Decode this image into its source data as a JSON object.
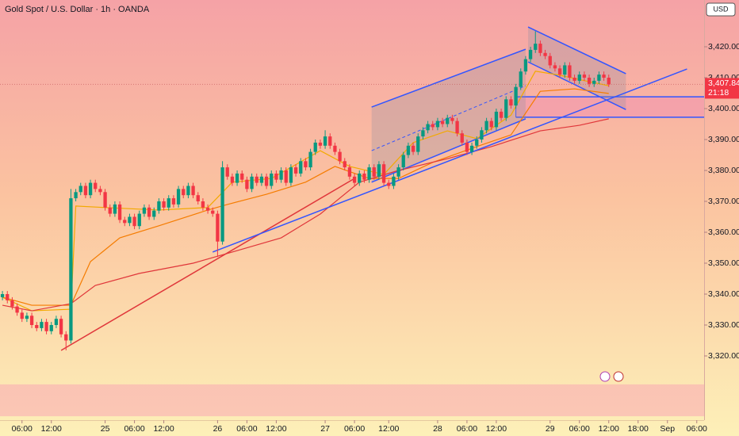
{
  "chart_data": {
    "type": "candlestick",
    "title": "Gold Spot / U.S. Dollar · 1h · OANDA",
    "currency": "USD",
    "last_price": {
      "value": 3407.84,
      "label": "3,407.840"
    },
    "countdown": "21:18",
    "up_color": "#089981",
    "down_color": "#f23645",
    "xlim": [
      -0.5,
      143.5
    ],
    "ylim": [
      3299.23,
      3435.13
    ],
    "yticks": [
      {
        "value": 3320,
        "label": "3,320.000"
      },
      {
        "value": 3330,
        "label": "3,330.000"
      },
      {
        "value": 3340,
        "label": "3,340.000"
      },
      {
        "value": 3350,
        "label": "3,350.000"
      },
      {
        "value": 3360,
        "label": "3,360.000"
      },
      {
        "value": 3370,
        "label": "3,370.000"
      },
      {
        "value": 3380,
        "label": "3,380.000"
      },
      {
        "value": 3390,
        "label": "3,390.000"
      },
      {
        "value": 3400,
        "label": "3,400.000"
      },
      {
        "value": 3410,
        "label": "3,410.000"
      },
      {
        "value": 3420,
        "label": "3,420.000"
      }
    ],
    "xticks": [
      {
        "value": 4,
        "label": "06:00"
      },
      {
        "value": 10,
        "label": "12:00"
      },
      {
        "value": 21,
        "label": "25"
      },
      {
        "value": 27,
        "label": "06:00"
      },
      {
        "value": 33,
        "label": "12:00"
      },
      {
        "value": 44,
        "label": "26"
      },
      {
        "value": 50,
        "label": "06:00"
      },
      {
        "value": 56,
        "label": "12:00"
      },
      {
        "value": 66,
        "label": "27"
      },
      {
        "value": 72,
        "label": "06:00"
      },
      {
        "value": 79,
        "label": "12:00"
      },
      {
        "value": 89,
        "label": "28"
      },
      {
        "value": 95,
        "label": "06:00"
      },
      {
        "value": 101,
        "label": "12:00"
      },
      {
        "value": 112,
        "label": "29"
      },
      {
        "value": 118,
        "label": "06:00"
      },
      {
        "value": 124,
        "label": "12:00"
      },
      {
        "value": 130,
        "label": "18:00"
      },
      {
        "value": 136,
        "label": "Sep"
      },
      {
        "value": 142,
        "label": "06:00"
      }
    ],
    "open": [
      3339,
      3340,
      3338,
      3336,
      3334,
      3332,
      3333,
      3330,
      3329,
      3331,
      3328,
      3330,
      3332,
      3327,
      3325,
      3371,
      3373,
      3375,
      3372,
      3376,
      3374,
      3373,
      3368,
      3366,
      3369,
      3364,
      3363,
      3365,
      3362,
      3366,
      3368,
      3365,
      3367,
      3370,
      3368,
      3371,
      3369,
      3374,
      3372,
      3375,
      3372,
      3370,
      3368,
      3367,
      3366,
      3357,
      3381,
      3378,
      3376,
      3379,
      3377,
      3374,
      3378,
      3376,
      3378,
      3375,
      3379,
      3377,
      3380,
      3376,
      3381,
      3379,
      3383,
      3381,
      3386,
      3389,
      3388,
      3391,
      3388,
      3386,
      3383,
      3381,
      3378,
      3376,
      3379,
      3377,
      3381,
      3378,
      3382,
      3376,
      3375,
      3378,
      3381,
      3385,
      3388,
      3386,
      3391,
      3393,
      3395,
      3394,
      3396,
      3395,
      3397,
      3396,
      3392,
      3389,
      3386,
      3388,
      3390,
      3393,
      3396,
      3394,
      3399,
      3397,
      3403,
      3401,
      3407,
      3412,
      3416,
      3419,
      3421,
      3418,
      3417,
      3414,
      3413,
      3411,
      3414,
      3410,
      3409,
      3411,
      3410,
      3408,
      3409,
      3411,
      3410
    ],
    "high": [
      3341,
      3341,
      3339,
      3337,
      3335,
      3334,
      3334,
      3331,
      3332,
      3332,
      3331,
      3333,
      3333,
      3328,
      3374,
      3374,
      3376,
      3376,
      3377,
      3377,
      3375,
      3374,
      3369,
      3370,
      3370,
      3365,
      3366,
      3366,
      3367,
      3369,
      3369,
      3368,
      3371,
      3371,
      3372,
      3372,
      3375,
      3375,
      3376,
      3376,
      3373,
      3371,
      3369,
      3368,
      3367,
      3383,
      3382,
      3379,
      3380,
      3380,
      3378,
      3379,
      3379,
      3379,
      3379,
      3380,
      3380,
      3381,
      3381,
      3382,
      3382,
      3384,
      3384,
      3387,
      3390,
      3390,
      3393,
      3392,
      3389,
      3387,
      3384,
      3382,
      3379,
      3380,
      3380,
      3382,
      3382,
      3383,
      3383,
      3377,
      3379,
      3382,
      3386,
      3389,
      3389,
      3392,
      3394,
      3396,
      3396,
      3397,
      3397,
      3398,
      3398,
      3397,
      3393,
      3390,
      3389,
      3391,
      3394,
      3397,
      3397,
      3400,
      3400,
      3404,
      3404,
      3408,
      3413,
      3417,
      3420,
      3425,
      3422,
      3419,
      3418,
      3415,
      3414,
      3415,
      3415,
      3411,
      3412,
      3412,
      3411,
      3410,
      3412,
      3412,
      3411
    ],
    "low": [
      3338,
      3337,
      3335,
      3333,
      3331,
      3331,
      3329,
      3328,
      3328,
      3327,
      3327,
      3329,
      3326,
      3321.8,
      3324,
      3370,
      3372,
      3371,
      3371,
      3373,
      3372,
      3367,
      3365,
      3365,
      3363,
      3362,
      3362,
      3361,
      3361,
      3365,
      3364,
      3364,
      3366,
      3367,
      3367,
      3368,
      3368,
      3371,
      3371,
      3371,
      3369,
      3367,
      3366,
      3365,
      3352,
      3356,
      3377,
      3375,
      3375,
      3376,
      3373,
      3373,
      3375,
      3375,
      3374,
      3374,
      3376,
      3376,
      3375,
      3375,
      3378,
      3378,
      3380,
      3380,
      3385,
      3387,
      3387,
      3387,
      3385,
      3382,
      3380,
      3377,
      3375,
      3375,
      3376,
      3376,
      3377,
      3377,
      3375,
      3374,
      3374,
      3377,
      3380,
      3384,
      3385,
      3385,
      3390,
      3392,
      3393,
      3393,
      3394,
      3394,
      3395,
      3391,
      3388,
      3385,
      3385,
      3387,
      3389,
      3392,
      3393,
      3393,
      3396,
      3396,
      3400,
      3400,
      3406,
      3411,
      3415,
      3418,
      3417,
      3416,
      3413,
      3412,
      3410,
      3410,
      3409,
      3408,
      3408,
      3409,
      3407,
      3407,
      3408,
      3409,
      3407
    ],
    "close": [
      3340,
      3338,
      3336,
      3334,
      3332,
      3333,
      3330,
      3329,
      3331,
      3328,
      3330,
      3332,
      3327,
      3325,
      3371,
      3373,
      3375,
      3372,
      3376,
      3374,
      3373,
      3368,
      3366,
      3369,
      3364,
      3363,
      3365,
      3362,
      3366,
      3368,
      3365,
      3367,
      3370,
      3368,
      3371,
      3369,
      3374,
      3372,
      3375,
      3372,
      3370,
      3368,
      3367,
      3366,
      3357,
      3381,
      3378,
      3376,
      3379,
      3377,
      3374,
      3378,
      3376,
      3378,
      3375,
      3379,
      3377,
      3380,
      3376,
      3381,
      3379,
      3383,
      3381,
      3386,
      3389,
      3388,
      3391,
      3388,
      3386,
      3383,
      3381,
      3378,
      3376,
      3379,
      3377,
      3381,
      3378,
      3382,
      3376,
      3375,
      3378,
      3381,
      3385,
      3388,
      3386,
      3391,
      3393,
      3395,
      3394,
      3396,
      3395,
      3397,
      3396,
      3392,
      3389,
      3386,
      3388,
      3390,
      3393,
      3396,
      3394,
      3399,
      3397,
      3403,
      3401,
      3407,
      3412,
      3416,
      3419,
      3421,
      3418,
      3417,
      3414,
      3413,
      3411,
      3414,
      3410,
      3409,
      3411,
      3410,
      3408,
      3409,
      3411,
      3410,
      3407.84
    ],
    "moving_averages": [
      {
        "color": "#f2a900",
        "x": [
          0,
          6,
          14,
          15,
          21,
          32,
          42,
          47,
          55,
          65,
          71,
          78,
          84,
          91,
          97,
          104,
          109,
          114,
          120,
          124
        ],
        "values": [
          3339.0,
          3334.6,
          3335.1,
          3368.5,
          3368.0,
          3367.2,
          3368.0,
          3376.2,
          3377.4,
          3386.4,
          3381.3,
          3378.7,
          3389.0,
          3392.8,
          3390.3,
          3397.9,
          3412.1,
          3410.8,
          3408.7,
          3407.4
        ]
      },
      {
        "color": "#f57c00",
        "x": [
          0,
          6,
          14,
          18,
          24,
          32,
          42,
          46,
          54,
          62,
          68,
          75,
          81,
          88,
          97,
          104,
          110,
          117,
          124
        ],
        "values": [
          3339.0,
          3336.4,
          3336.4,
          3350.5,
          3358.2,
          3362.1,
          3367.2,
          3369.0,
          3372.3,
          3376.2,
          3381.3,
          3377.4,
          3377.4,
          3382.6,
          3387.7,
          3391.5,
          3405.6,
          3406.4,
          3404.9
        ]
      },
      {
        "color": "#e0363a",
        "x": [
          0,
          6,
          14,
          19,
          28,
          39,
          47,
          57,
          65,
          73,
          81,
          91,
          100,
          110,
          118,
          124
        ],
        "values": [
          3336.4,
          3334.6,
          3336.9,
          3342.8,
          3346.7,
          3350.0,
          3353.6,
          3358.2,
          3365.9,
          3376.2,
          3380.0,
          3383.8,
          3387.7,
          3392.8,
          3394.6,
          3396.7
        ]
      }
    ],
    "trendlines": [
      {
        "color": "#e0363a",
        "x": [
          12,
          72
        ],
        "y": [
          3321.8,
          3377.4
        ]
      },
      {
        "color": "#3355ff",
        "x": [
          43,
          140
        ],
        "y": [
          3353.6,
          3412.8
        ]
      }
    ],
    "channels": [
      {
        "color": "#3355ff",
        "x": [
          75.5,
          107
        ],
        "upper": [
          3400.5,
          3419.2
        ],
        "lower": [
          3376.2,
          3396.7
        ],
        "mid": [
          3386.4,
          3407.4
        ]
      },
      {
        "color": "#3355ff",
        "x": [
          107.5,
          127.5
        ],
        "upper": [
          3426.4,
          3411.3
        ],
        "lower": [
          3415.1,
          3399.7
        ]
      }
    ],
    "zones": [
      {
        "x_start": 105,
        "price": [
          3397.2,
          3403.8
        ],
        "fill": "#f08cb4",
        "border": "#3355ff"
      },
      {
        "price": [
          3300.5,
          3310.8
        ],
        "fill": "#f99ab4"
      }
    ]
  }
}
